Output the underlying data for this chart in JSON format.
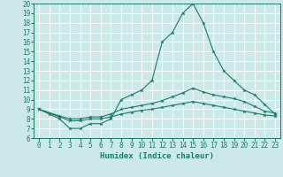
{
  "xlabel": "Humidex (Indice chaleur)",
  "xlim": [
    -0.5,
    23.5
  ],
  "ylim": [
    6,
    20
  ],
  "xticks": [
    0,
    1,
    2,
    3,
    4,
    5,
    6,
    7,
    8,
    9,
    10,
    11,
    12,
    13,
    14,
    15,
    16,
    17,
    18,
    19,
    20,
    21,
    22,
    23
  ],
  "yticks": [
    6,
    7,
    8,
    9,
    10,
    11,
    12,
    13,
    14,
    15,
    16,
    17,
    18,
    19,
    20
  ],
  "background_color": "#cde8e8",
  "line_color": "#1a7a6a",
  "grid_color": "#ffffff",
  "line1_x": [
    0,
    1,
    2,
    3,
    4,
    5,
    6,
    7,
    8,
    9,
    10,
    11,
    12,
    13,
    14,
    15,
    16,
    17,
    18,
    19,
    20,
    21,
    22,
    23
  ],
  "line1_y": [
    9,
    8.5,
    8,
    7,
    7,
    7.5,
    7.5,
    8,
    10,
    10.5,
    11,
    12,
    16,
    17,
    19,
    20,
    18,
    15,
    13,
    12,
    11,
    10.5,
    9.5,
    8.5
  ],
  "line2_x": [
    0,
    2,
    3,
    4,
    5,
    6,
    7,
    8,
    9,
    10,
    11,
    12,
    13,
    14,
    15,
    16,
    17,
    18,
    19,
    20,
    21,
    22,
    23
  ],
  "line2_y": [
    9,
    8.3,
    8,
    8,
    8.2,
    8.2,
    8.5,
    9,
    9.2,
    9.4,
    9.6,
    9.9,
    10.3,
    10.7,
    11.2,
    10.8,
    10.5,
    10.3,
    10.1,
    9.8,
    9.3,
    8.8,
    8.6
  ],
  "line3_x": [
    0,
    2,
    3,
    4,
    5,
    6,
    7,
    8,
    9,
    10,
    11,
    12,
    13,
    14,
    15,
    16,
    17,
    18,
    19,
    20,
    21,
    22,
    23
  ],
  "line3_y": [
    9,
    8.2,
    7.8,
    7.8,
    8.0,
    8.0,
    8.2,
    8.5,
    8.7,
    8.9,
    9.0,
    9.2,
    9.4,
    9.6,
    9.8,
    9.6,
    9.4,
    9.2,
    9.0,
    8.8,
    8.6,
    8.4,
    8.3
  ]
}
